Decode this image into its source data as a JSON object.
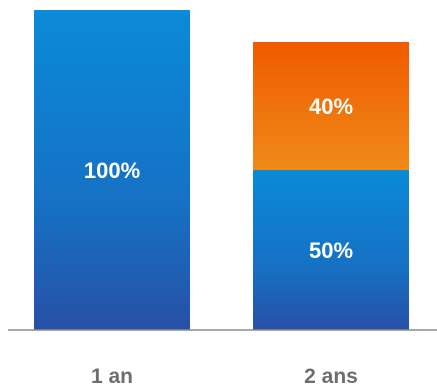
{
  "chart_data": {
    "type": "bar",
    "stacked": true,
    "title": "",
    "xlabel": "",
    "ylabel": "",
    "ylim": [
      0,
      100
    ],
    "grid": false,
    "categories": [
      "1 an",
      "2 ans"
    ],
    "series": [
      {
        "color": "#1a72c4",
        "values": [
          100,
          50
        ],
        "labels": [
          "100%",
          "50%"
        ]
      },
      {
        "color": "#ef6a10",
        "values": [
          0,
          40
        ],
        "labels": [
          "",
          "40%"
        ]
      }
    ]
  }
}
